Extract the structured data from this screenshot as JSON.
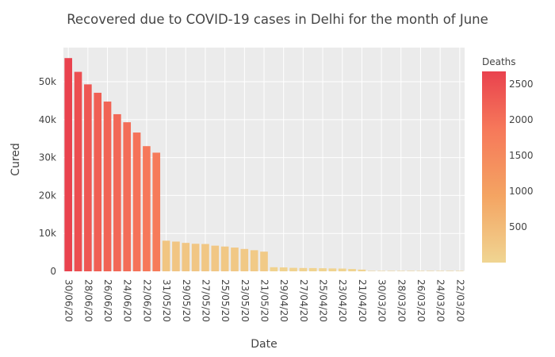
{
  "chart_data": {
    "type": "bar",
    "title": "Recovered due to COVID-19 cases in Delhi for the month of June",
    "xlabel": "Date",
    "ylabel": "Cured",
    "ylim": [
      0,
      59000
    ],
    "yticks": [
      0,
      10000,
      20000,
      30000,
      40000,
      50000
    ],
    "ytick_labels": [
      "0",
      "10k",
      "20k",
      "30k",
      "40k",
      "50k"
    ],
    "grid": true,
    "x_tick_labels": [
      "30/06/20",
      "28/06/20",
      "26/06/20",
      "24/06/20",
      "22/06/20",
      "31/05/20",
      "29/05/20",
      "27/05/20",
      "25/05/20",
      "23/05/20",
      "21/05/20",
      "29/04/20",
      "27/04/20",
      "25/04/20",
      "23/04/20",
      "21/04/20",
      "30/03/20",
      "28/03/20",
      "26/03/20",
      "24/03/20",
      "22/03/20"
    ],
    "colorbar": {
      "title": "Deaths",
      "min": 0,
      "max": 2680,
      "ticks": [
        500,
        1000,
        1500,
        2000,
        2500
      ],
      "colors": [
        "#f0d592",
        "#f4a462",
        "#f6785a",
        "#e9424e"
      ]
    },
    "bars": [
      {
        "cured": 56235,
        "deaths": 2680
      },
      {
        "cured": 52607,
        "deaths": 2500
      },
      {
        "cured": 49301,
        "deaths": 2360
      },
      {
        "cured": 47091,
        "deaths": 2250
      },
      {
        "cured": 44765,
        "deaths": 2180
      },
      {
        "cured": 41437,
        "deaths": 2110
      },
      {
        "cured": 39313,
        "deaths": 2040
      },
      {
        "cured": 36602,
        "deaths": 1960
      },
      {
        "cured": 33013,
        "deaths": 1880
      },
      {
        "cured": 31294,
        "deaths": 1820
      },
      {
        "cured": 8075,
        "deaths": 310
      },
      {
        "cured": 7846,
        "deaths": 300
      },
      {
        "cured": 7495,
        "deaths": 290
      },
      {
        "cured": 7264,
        "deaths": 280
      },
      {
        "cured": 7205,
        "deaths": 270
      },
      {
        "cured": 6771,
        "deaths": 260
      },
      {
        "cured": 6540,
        "deaths": 250
      },
      {
        "cured": 6267,
        "deaths": 240
      },
      {
        "cured": 5898,
        "deaths": 230
      },
      {
        "cured": 5567,
        "deaths": 220
      },
      {
        "cured": 5192,
        "deaths": 210
      },
      {
        "cured": 1078,
        "deaths": 60
      },
      {
        "cured": 1030,
        "deaths": 55
      },
      {
        "cured": 919,
        "deaths": 50
      },
      {
        "cured": 877,
        "deaths": 48
      },
      {
        "cured": 857,
        "deaths": 46
      },
      {
        "cured": 808,
        "deaths": 44
      },
      {
        "cured": 760,
        "deaths": 42
      },
      {
        "cured": 724,
        "deaths": 40
      },
      {
        "cured": 611,
        "deaths": 38
      },
      {
        "cured": 456,
        "deaths": 36
      },
      {
        "cured": 23,
        "deaths": 5
      },
      {
        "cured": 21,
        "deaths": 4
      },
      {
        "cured": 16,
        "deaths": 3
      },
      {
        "cured": 13,
        "deaths": 3
      },
      {
        "cured": 8,
        "deaths": 2
      },
      {
        "cured": 7,
        "deaths": 2
      },
      {
        "cured": 6,
        "deaths": 1
      },
      {
        "cured": 6,
        "deaths": 1
      },
      {
        "cured": 5,
        "deaths": 1
      },
      {
        "cured": 4,
        "deaths": 1
      }
    ]
  }
}
